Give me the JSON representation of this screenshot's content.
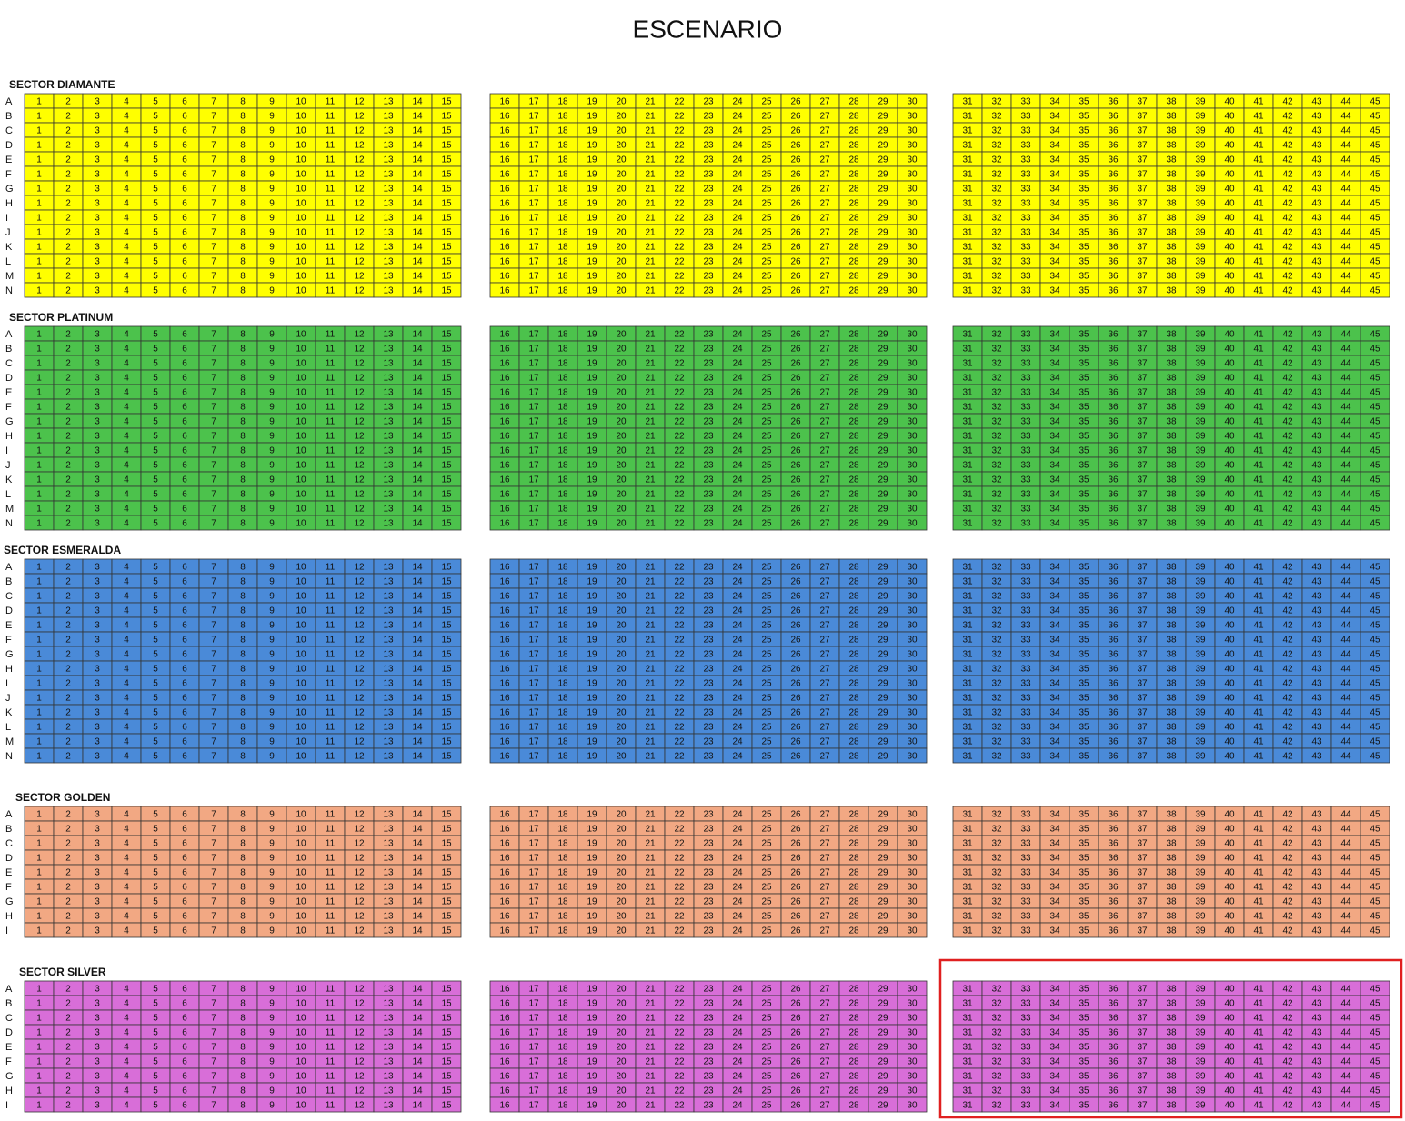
{
  "title": "ESCENARIO",
  "sectors": [
    {
      "name": "SECTOR DIAMANTE",
      "color": "#ffff00",
      "rows": [
        "A",
        "B",
        "C",
        "D",
        "E",
        "F",
        "G",
        "H",
        "I",
        "J",
        "K",
        "L",
        "M",
        "N"
      ],
      "seats": [
        1,
        2,
        3,
        4,
        5,
        6,
        7,
        8,
        9,
        10,
        11,
        12,
        13,
        14,
        15,
        16,
        17,
        18,
        19,
        20,
        21,
        22,
        23,
        24,
        25,
        26,
        27,
        28,
        29,
        30,
        31,
        32,
        33,
        34,
        35,
        36,
        37,
        38,
        39,
        40,
        41,
        42,
        43,
        44,
        45
      ]
    },
    {
      "name": "SECTOR PLATINUM",
      "color": "#4cc24c",
      "rows": [
        "A",
        "B",
        "C",
        "D",
        "E",
        "F",
        "G",
        "H",
        "I",
        "J",
        "K",
        "L",
        "M",
        "N"
      ],
      "seats": [
        1,
        2,
        3,
        4,
        5,
        6,
        7,
        8,
        9,
        10,
        11,
        12,
        13,
        14,
        15,
        16,
        17,
        18,
        19,
        20,
        21,
        22,
        23,
        24,
        25,
        26,
        27,
        28,
        29,
        30,
        31,
        32,
        33,
        34,
        35,
        36,
        37,
        38,
        39,
        40,
        41,
        42,
        43,
        44,
        45
      ]
    },
    {
      "name": "SECTOR ESMERALDA",
      "color": "#4a8ad8",
      "rows": [
        "A",
        "B",
        "C",
        "D",
        "E",
        "F",
        "G",
        "H",
        "I",
        "J",
        "K",
        "L",
        "M",
        "N"
      ],
      "seats": [
        1,
        2,
        3,
        4,
        5,
        6,
        7,
        8,
        9,
        10,
        11,
        12,
        13,
        14,
        15,
        16,
        17,
        18,
        19,
        20,
        21,
        22,
        23,
        24,
        25,
        26,
        27,
        28,
        29,
        30,
        31,
        32,
        33,
        34,
        35,
        36,
        37,
        38,
        39,
        40,
        41,
        42,
        43,
        44,
        45
      ]
    },
    {
      "name": "SECTOR GOLDEN",
      "color": "#f2a883",
      "rows": [
        "A",
        "B",
        "C",
        "D",
        "E",
        "F",
        "G",
        "H",
        "I"
      ],
      "seats": [
        1,
        2,
        3,
        4,
        5,
        6,
        7,
        8,
        9,
        10,
        11,
        12,
        13,
        14,
        15,
        16,
        17,
        18,
        19,
        20,
        21,
        22,
        23,
        24,
        25,
        26,
        27,
        28,
        29,
        30,
        31,
        32,
        33,
        34,
        35,
        36,
        37,
        38,
        39,
        40,
        41,
        42,
        43,
        44,
        45
      ]
    },
    {
      "name": "SECTOR SILVER",
      "color": "#d86ed8",
      "rows": [
        "A",
        "B",
        "C",
        "D",
        "E",
        "F",
        "G",
        "H",
        "I"
      ],
      "seats": [
        1,
        2,
        3,
        4,
        5,
        6,
        7,
        8,
        9,
        10,
        11,
        12,
        13,
        14,
        15,
        16,
        17,
        18,
        19,
        20,
        21,
        22,
        23,
        24,
        25,
        26,
        27,
        28,
        29,
        30,
        31,
        32,
        33,
        34,
        35,
        36,
        37,
        38,
        39,
        40,
        41,
        42,
        43,
        44,
        45
      ]
    }
  ]
}
